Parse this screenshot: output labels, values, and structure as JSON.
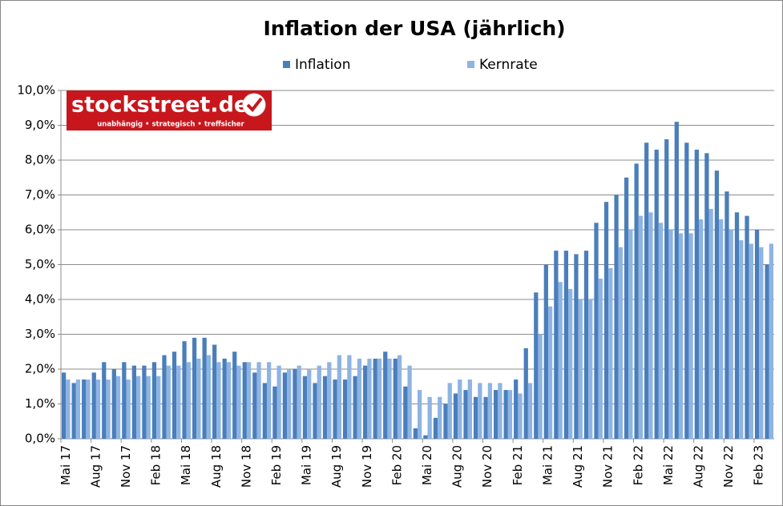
{
  "chart_data": {
    "type": "bar",
    "title": "Inflation der USA (jährlich)",
    "categories": [
      "Mai 17",
      null,
      null,
      "Aug 17",
      null,
      null,
      "Nov 17",
      null,
      null,
      "Feb 18",
      null,
      null,
      "Mai 18",
      null,
      null,
      "Aug 18",
      null,
      null,
      "Nov 18",
      null,
      null,
      "Feb 19",
      null,
      null,
      "Mai 19",
      null,
      null,
      "Aug 19",
      null,
      null,
      "Nov 19",
      null,
      null,
      "Feb 20",
      null,
      null,
      "Mai 20",
      null,
      null,
      "Aug 20",
      null,
      null,
      "Nov 20",
      null,
      null,
      "Feb 21",
      null,
      null,
      "Mai 21",
      null,
      null,
      "Aug 21",
      null,
      null,
      "Nov 21",
      null,
      null,
      "Feb 22",
      null,
      null,
      "Mai 22",
      null,
      null,
      "Aug 22",
      null,
      null,
      "Nov 22",
      null,
      null,
      "Feb 23",
      null
    ],
    "series": [
      {
        "name": "Inflation",
        "color": "#4a7ebb",
        "values": [
          1.9,
          1.6,
          1.7,
          1.9,
          2.2,
          2.0,
          2.2,
          2.1,
          2.1,
          2.2,
          2.4,
          2.5,
          2.8,
          2.9,
          2.9,
          2.7,
          2.3,
          2.5,
          2.2,
          1.9,
          1.6,
          1.5,
          1.9,
          2.0,
          1.8,
          1.6,
          1.8,
          1.7,
          1.7,
          1.8,
          2.1,
          2.3,
          2.5,
          2.3,
          1.5,
          0.3,
          0.1,
          0.6,
          1.0,
          1.3,
          1.4,
          1.2,
          1.2,
          1.4,
          1.4,
          1.7,
          2.6,
          4.2,
          5.0,
          5.4,
          5.4,
          5.3,
          5.4,
          6.2,
          6.8,
          7.0,
          7.5,
          7.9,
          8.5,
          8.3,
          8.6,
          9.1,
          8.5,
          8.3,
          8.2,
          7.7,
          7.1,
          6.5,
          6.4,
          6.0,
          5.0
        ]
      },
      {
        "name": "Kernrate",
        "color": "#8eb4e3",
        "values": [
          1.7,
          1.7,
          1.7,
          1.7,
          1.7,
          1.8,
          1.7,
          1.8,
          1.8,
          1.8,
          2.1,
          2.1,
          2.2,
          2.3,
          2.4,
          2.2,
          2.2,
          2.1,
          2.2,
          2.2,
          2.2,
          2.1,
          2.0,
          2.1,
          2.0,
          2.1,
          2.2,
          2.4,
          2.4,
          2.3,
          2.3,
          2.3,
          2.3,
          2.4,
          2.1,
          1.4,
          1.2,
          1.2,
          1.6,
          1.7,
          1.7,
          1.6,
          1.6,
          1.6,
          1.4,
          1.3,
          1.6,
          3.0,
          3.8,
          4.5,
          4.3,
          4.0,
          4.0,
          4.6,
          4.9,
          5.5,
          6.0,
          6.4,
          6.5,
          6.2,
          6.0,
          5.9,
          5.9,
          6.3,
          6.6,
          6.3,
          6.0,
          5.7,
          5.6,
          5.5,
          5.6
        ]
      }
    ],
    "ylim": [
      0,
      10
    ],
    "yticks": [
      {
        "value": 0,
        "label": "0,0%"
      },
      {
        "value": 1,
        "label": "1,0%"
      },
      {
        "value": 2,
        "label": "2,0%"
      },
      {
        "value": 3,
        "label": "3,0%"
      },
      {
        "value": 4,
        "label": "4,0%"
      },
      {
        "value": 5,
        "label": "5,0%"
      },
      {
        "value": 6,
        "label": "6,0%"
      },
      {
        "value": 7,
        "label": "7,0%"
      },
      {
        "value": 8,
        "label": "8,0%"
      },
      {
        "value": 9,
        "label": "9,0%"
      },
      {
        "value": 10,
        "label": "10,0%"
      }
    ],
    "grid": true,
    "legend": "top"
  },
  "logo": {
    "name": "stockstreet.de",
    "tagline": "unabhängig • strategisch • treffsicher"
  }
}
